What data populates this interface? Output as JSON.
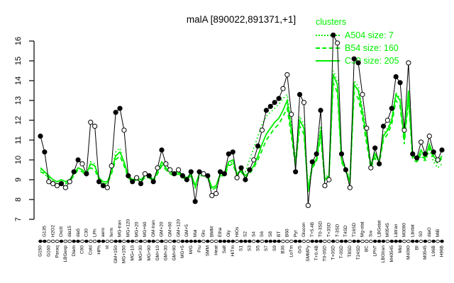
{
  "title": "malA [890022,891371,+1]",
  "colors": {
    "cluster_green": "#00ee00",
    "series_black": "#000000",
    "background": "#ffffff"
  },
  "legend": {
    "title": "clusters",
    "entries": [
      {
        "label": "A504 size: 7",
        "style": "dotted"
      },
      {
        "label": "B54 size: 160",
        "style": "dashed"
      },
      {
        "label": "C30 size: 205",
        "style": "solid"
      }
    ]
  },
  "chart_data": {
    "type": "line",
    "title": "malA [890022,891371,+1]",
    "xlabel": "",
    "ylabel": "",
    "ylim": [
      7,
      16.5
    ],
    "yticks": [
      7,
      8,
      9,
      10,
      11,
      12,
      13,
      14,
      15,
      16
    ],
    "grid": false,
    "legend_position": "top-right",
    "categories": [
      "G150",
      "G135",
      "G160",
      "H2O2",
      "Paraq",
      "Oxctl",
      "LBGexp",
      "dia15",
      "Diam",
      "dia5",
      "C90",
      "C30",
      "Cold",
      "LPh",
      "HPh",
      "aero",
      "nt",
      "ferm",
      "GM+150",
      "MG-tran",
      "MG+150",
      "MG+120",
      "MG+10",
      "MG+20",
      "MG+30",
      "MG+60",
      "MG+90",
      "GM-tran",
      "GM+10",
      "GM+20",
      "GM+30",
      "GM+60",
      "GM+90",
      "GM+120",
      "MG+5",
      "GM+5",
      "M/G",
      "Mal",
      "Fru",
      "Glu",
      "SMM",
      "BMM",
      "Heat",
      "Etha",
      "Salt",
      "Gly",
      "HiTm",
      "HiOs",
      "S1",
      "S2",
      "S3",
      "S4",
      "S5",
      "S6",
      "S7",
      "S8",
      "S9",
      "BT",
      "B36",
      "B60",
      "LoTm",
      "Pyr",
      "G/S",
      "Glucon",
      "SMMPy",
      "T+5.4B",
      "T+0.4B",
      "T0-3SD",
      "T0-0SD",
      "T+3SD",
      "T+0SD",
      "T-3SD",
      "T-0SD",
      "T4SD",
      "T8SD",
      "T16SD",
      "T24SD",
      "Mg-stat",
      "BC",
      "Sw",
      "LPhT",
      "LBGstat",
      "LBGtran",
      "M0545",
      "M40545",
      "Lbtran",
      "Mid",
      "M0090",
      "M4090",
      "Lbstat",
      "BI",
      "S0",
      "M0545",
      "diaO",
      "L96B",
      "MiB",
      "H96B"
    ],
    "series": [
      {
        "name": "malA expression",
        "color": "#000000",
        "style": "solid-markers",
        "values": [
          11.2,
          10.4,
          8.9,
          8.8,
          8.7,
          8.8,
          8.6,
          8.9,
          9.4,
          10.0,
          9.8,
          9.3,
          11.9,
          11.7,
          8.9,
          8.7,
          8.6,
          9.7,
          12.4,
          12.6,
          11.5,
          9.2,
          8.9,
          9.1,
          8.8,
          9.3,
          9.2,
          8.9,
          9.6,
          10.5,
          9.8,
          9.5,
          9.3,
          9.5,
          9.2,
          9.0,
          9.4,
          7.9,
          9.4,
          9.3,
          9.2,
          8.2,
          8.3,
          9.4,
          9.3,
          10.3,
          10.4,
          9.1,
          9.6,
          9.0,
          9.5,
          10.0,
          10.7,
          11.5,
          12.5,
          12.7,
          12.9,
          13.1,
          13.6,
          14.3,
          12.3,
          9.4,
          13.3,
          12.9,
          7.7,
          9.9,
          10.3,
          12.5,
          8.7,
          9.0,
          16.3,
          15.9,
          10.3,
          9.5,
          8.6,
          15.1,
          14.9,
          13.3,
          11.6,
          9.6,
          10.6,
          9.8,
          11.7,
          12.0,
          12.6,
          14.2,
          13.9,
          11.5,
          14.9,
          10.3,
          10.1,
          10.9,
          10.3,
          11.2,
          10.4,
          10.0,
          10.5
        ],
        "marker_filled": [
          true,
          true,
          false,
          false,
          false,
          true,
          false,
          false,
          true,
          true,
          false,
          true,
          false,
          false,
          true,
          true,
          false,
          false,
          true,
          true,
          false,
          true,
          true,
          false,
          true,
          false,
          true,
          true,
          false,
          true,
          false,
          false,
          true,
          false,
          true,
          true,
          true,
          true,
          true,
          false,
          true,
          false,
          false,
          true,
          true,
          true,
          true,
          false,
          true,
          true,
          true,
          false,
          true,
          false,
          true,
          true,
          true,
          true,
          false,
          false,
          false,
          true,
          true,
          false,
          false,
          true,
          true,
          true,
          false,
          false,
          true,
          false,
          true,
          true,
          false,
          true,
          true,
          false,
          false,
          false,
          true,
          true,
          true,
          false,
          true,
          true,
          true,
          false,
          false,
          true,
          true,
          false,
          true,
          false,
          true,
          false,
          true
        ]
      },
      {
        "name": "A504 size: 7",
        "color": "#00ee00",
        "style": "dotted",
        "values": [
          9.5,
          9.3,
          9.0,
          8.9,
          8.8,
          8.9,
          8.8,
          9.0,
          9.3,
          9.6,
          9.5,
          9.2,
          9.9,
          9.8,
          9.0,
          8.8,
          8.8,
          9.4,
          10.4,
          10.6,
          9.8,
          9.1,
          8.9,
          9.0,
          8.9,
          9.1,
          9.1,
          8.9,
          9.4,
          9.8,
          9.5,
          9.3,
          9.2,
          9.3,
          9.1,
          9.0,
          9.2,
          8.6,
          9.2,
          9.2,
          9.1,
          8.5,
          8.6,
          9.2,
          9.2,
          9.8,
          9.9,
          9.2,
          9.5,
          9.4,
          10.0,
          10.6,
          11.2,
          11.8,
          12.2,
          12.4,
          12.6,
          12.8,
          13.1,
          13.3,
          11.8,
          10.0,
          12.2,
          11.8,
          8.6,
          9.8,
          10.1,
          11.7,
          9.1,
          9.3,
          14.5,
          14.0,
          10.1,
          9.6,
          9.0,
          14.0,
          13.7,
          12.6,
          11.3,
          9.8,
          10.4,
          10.0,
          11.3,
          11.6,
          12.1,
          13.4,
          13.1,
          11.1,
          13.0,
          10.3,
          9.9,
          10.2,
          9.9,
          10.5,
          9.9,
          9.6,
          9.8
        ]
      },
      {
        "name": "B54 size: 160",
        "color": "#00ee00",
        "style": "dashed",
        "values": [
          9.4,
          9.3,
          9.1,
          8.9,
          8.8,
          8.9,
          8.8,
          8.9,
          9.2,
          9.5,
          9.4,
          9.2,
          9.6,
          9.5,
          9.0,
          8.8,
          8.8,
          9.3,
          10.0,
          10.2,
          9.7,
          9.1,
          8.9,
          9.0,
          8.9,
          9.1,
          9.1,
          8.9,
          9.3,
          9.7,
          9.5,
          9.3,
          9.2,
          9.3,
          9.1,
          9.0,
          9.2,
          8.6,
          9.2,
          9.2,
          9.1,
          8.5,
          8.6,
          9.2,
          9.2,
          9.7,
          9.8,
          9.2,
          9.4,
          9.1,
          9.3,
          9.6,
          10.0,
          10.5,
          11.0,
          11.3,
          11.6,
          11.8,
          12.2,
          12.6,
          11.2,
          9.7,
          11.7,
          11.3,
          8.5,
          9.6,
          9.9,
          11.2,
          8.9,
          9.1,
          13.9,
          13.4,
          9.9,
          9.4,
          8.8,
          13.4,
          13.1,
          12.1,
          10.8,
          9.6,
          10.1,
          9.8,
          11.0,
          11.3,
          11.8,
          13.0,
          12.7,
          10.8,
          13.1,
          10.0,
          9.9,
          10.3,
          10.0,
          10.6,
          10.1,
          9.8,
          10.1
        ]
      },
      {
        "name": "C30 size: 205",
        "color": "#00ee00",
        "style": "solid",
        "values": [
          9.6,
          9.4,
          9.2,
          9.0,
          8.9,
          9.0,
          8.9,
          9.0,
          9.3,
          9.6,
          9.5,
          9.3,
          9.8,
          9.7,
          9.1,
          8.9,
          8.9,
          9.4,
          10.2,
          10.4,
          9.9,
          9.2,
          9.0,
          9.1,
          9.0,
          9.2,
          9.2,
          9.0,
          9.4,
          9.9,
          9.6,
          9.4,
          9.3,
          9.4,
          9.2,
          9.1,
          9.3,
          8.7,
          9.3,
          9.3,
          9.2,
          8.6,
          8.7,
          9.3,
          9.3,
          9.9,
          10.0,
          9.3,
          9.5,
          9.2,
          9.4,
          9.7,
          10.2,
          10.8,
          11.3,
          11.6,
          11.9,
          12.1,
          12.5,
          13.0,
          11.5,
          9.8,
          12.0,
          11.6,
          8.4,
          9.7,
          10.0,
          11.5,
          9.0,
          9.2,
          14.3,
          13.8,
          10.0,
          9.5,
          8.9,
          13.8,
          13.5,
          12.4,
          11.1,
          9.7,
          10.3,
          9.9,
          11.2,
          11.5,
          12.0,
          13.3,
          13.0,
          11.0,
          13.5,
          10.2,
          10.0,
          10.5,
          10.1,
          10.8,
          10.2,
          9.9,
          10.2
        ]
      }
    ]
  }
}
